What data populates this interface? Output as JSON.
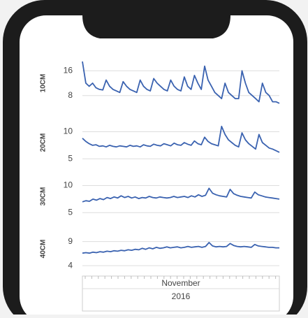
{
  "chart_data": [
    {
      "type": "line",
      "y_label": "10CM",
      "ylim": [
        5,
        19
      ],
      "yticks": [
        8,
        16
      ],
      "color": "#3a62b0",
      "values": [
        19,
        12,
        11,
        12,
        10.5,
        10,
        9.8,
        13,
        11,
        10,
        9.5,
        9,
        12.5,
        11,
        10,
        9.5,
        9,
        13,
        11,
        10,
        9.5,
        13.5,
        12,
        11,
        10,
        9.5,
        13,
        11,
        10,
        9.5,
        14,
        11,
        10,
        14.5,
        12,
        10,
        17.5,
        13,
        11,
        9,
        8,
        7,
        12,
        9,
        8,
        7,
        7,
        16,
        12,
        9,
        8,
        7,
        6,
        12,
        9,
        8,
        6,
        6,
        5.5
      ]
    },
    {
      "type": "line",
      "y_label": "20CM",
      "ylim": [
        4,
        12
      ],
      "yticks": [
        5,
        10
      ],
      "color": "#3a62b0",
      "values": [
        8.8,
        8.2,
        7.8,
        7.5,
        7.6,
        7.3,
        7.4,
        7.2,
        7.5,
        7.3,
        7.2,
        7.4,
        7.3,
        7.2,
        7.5,
        7.3,
        7.4,
        7.2,
        7.6,
        7.4,
        7.3,
        7.7,
        7.5,
        7.4,
        7.8,
        7.6,
        7.4,
        7.9,
        7.6,
        7.5,
        8,
        7.7,
        7.5,
        8.3,
        7.8,
        7.6,
        9,
        8.2,
        7.8,
        7.6,
        7.4,
        11,
        9.5,
        8.5,
        8,
        7.5,
        7.2,
        9.8,
        8.5,
        7.8,
        7.3,
        6.8,
        9.5,
        8,
        7.5,
        7,
        6.8,
        6.5,
        6.2
      ]
    },
    {
      "type": "line",
      "y_label": "30CM",
      "ylim": [
        4,
        12
      ],
      "yticks": [
        5,
        10
      ],
      "color": "#3a62b0",
      "values": [
        7,
        7.2,
        7.1,
        7.5,
        7.3,
        7.6,
        7.4,
        7.8,
        7.6,
        7.9,
        7.7,
        8.1,
        7.8,
        8,
        7.7,
        7.9,
        7.6,
        7.8,
        7.7,
        8,
        7.8,
        7.7,
        7.9,
        7.8,
        7.7,
        7.8,
        8,
        7.8,
        7.9,
        8,
        7.8,
        8.1,
        7.9,
        8.3,
        8,
        8.2,
        9.5,
        8.6,
        8.3,
        8.1,
        8,
        7.9,
        9.3,
        8.5,
        8.2,
        8,
        7.9,
        7.8,
        7.7,
        8.8,
        8.3,
        8.1,
        7.9,
        7.8,
        7.7,
        7.6,
        7.5
      ]
    },
    {
      "type": "line",
      "y_label": "40CM",
      "ylim": [
        3,
        12
      ],
      "yticks": [
        4,
        9
      ],
      "color": "#3a62b0",
      "values": [
        6.6,
        6.7,
        6.6,
        6.8,
        6.7,
        6.9,
        6.8,
        7,
        6.9,
        7.1,
        7,
        7.2,
        7.1,
        7.3,
        7.2,
        7.4,
        7.3,
        7.6,
        7.4,
        7.7,
        7.5,
        7.8,
        7.6,
        7.7,
        7.9,
        7.7,
        7.8,
        7.9,
        7.7,
        7.8,
        8,
        7.8,
        7.9,
        8,
        7.8,
        8,
        8.8,
        8.1,
        7.9,
        8,
        7.9,
        8,
        8.6,
        8.2,
        8,
        7.9,
        8,
        7.9,
        7.8,
        8.4,
        8.1,
        8,
        7.9,
        7.8,
        7.8,
        7.7,
        7.7
      ]
    }
  ],
  "x_axis": {
    "month": "November",
    "year": "2016"
  }
}
